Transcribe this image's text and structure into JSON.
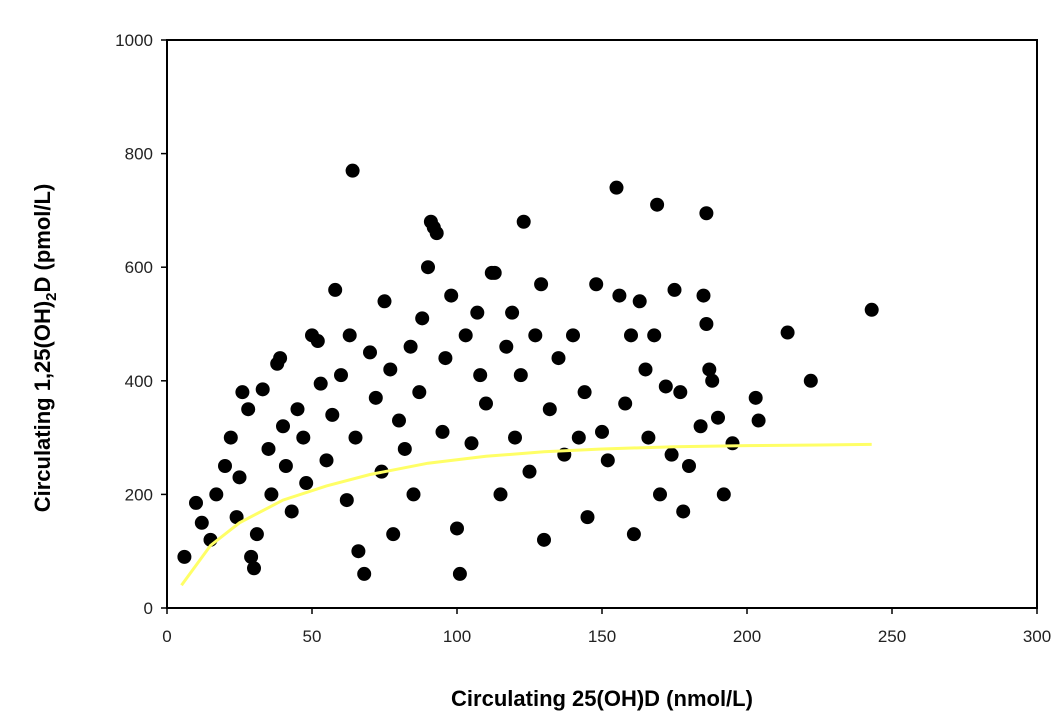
{
  "chart_data": {
    "type": "scatter",
    "title": "",
    "xlabel": "Circulating 25(OH)D (nmol/L)",
    "ylabel": "Circulating 1,25(OH)2D (pmol/L)",
    "ylabel_parts": {
      "prefix": "Circulating 1,25(OH)",
      "subscript": "2",
      "suffix": "D (pmol/L)"
    },
    "xlim": [
      0,
      300
    ],
    "ylim": [
      0,
      1000
    ],
    "xticks": [
      0,
      50,
      100,
      150,
      200,
      250,
      300
    ],
    "yticks": [
      0,
      200,
      400,
      600,
      800,
      1000
    ],
    "xtick_labels": [
      "0",
      "50",
      "100",
      "150",
      "200",
      "250",
      "300"
    ],
    "ytick_labels": [
      "0",
      "200",
      "400",
      "600",
      "800",
      "1000"
    ],
    "grid": false,
    "legend": "none",
    "point_color": "#000000",
    "fit_line_color": "#ffff66",
    "series": [
      {
        "values": [
          [
            6,
            90
          ],
          [
            10,
            185
          ],
          [
            12,
            150
          ],
          [
            15,
            120
          ],
          [
            17,
            200
          ],
          [
            20,
            250
          ],
          [
            22,
            300
          ],
          [
            24,
            160
          ],
          [
            25,
            230
          ],
          [
            26,
            380
          ],
          [
            28,
            350
          ],
          [
            29,
            90
          ],
          [
            30,
            70
          ],
          [
            31,
            130
          ],
          [
            33,
            385
          ],
          [
            35,
            280
          ],
          [
            36,
            200
          ],
          [
            38,
            430
          ],
          [
            39,
            440
          ],
          [
            40,
            320
          ],
          [
            41,
            250
          ],
          [
            43,
            170
          ],
          [
            45,
            350
          ],
          [
            47,
            300
          ],
          [
            48,
            220
          ],
          [
            50,
            480
          ],
          [
            52,
            470
          ],
          [
            53,
            395
          ],
          [
            55,
            260
          ],
          [
            57,
            340
          ],
          [
            58,
            560
          ],
          [
            60,
            410
          ],
          [
            62,
            190
          ],
          [
            63,
            480
          ],
          [
            64,
            770
          ],
          [
            65,
            300
          ],
          [
            66,
            100
          ],
          [
            68,
            60
          ],
          [
            70,
            450
          ],
          [
            72,
            370
          ],
          [
            74,
            240
          ],
          [
            75,
            540
          ],
          [
            77,
            420
          ],
          [
            78,
            130
          ],
          [
            80,
            330
          ],
          [
            82,
            280
          ],
          [
            84,
            460
          ],
          [
            85,
            200
          ],
          [
            87,
            380
          ],
          [
            88,
            510
          ],
          [
            90,
            600
          ],
          [
            91,
            680
          ],
          [
            92,
            670
          ],
          [
            93,
            660
          ],
          [
            95,
            310
          ],
          [
            96,
            440
          ],
          [
            98,
            550
          ],
          [
            100,
            140
          ],
          [
            101,
            60
          ],
          [
            103,
            480
          ],
          [
            105,
            290
          ],
          [
            107,
            520
          ],
          [
            108,
            410
          ],
          [
            110,
            360
          ],
          [
            112,
            590
          ],
          [
            113,
            590
          ],
          [
            115,
            200
          ],
          [
            117,
            460
          ],
          [
            119,
            520
          ],
          [
            120,
            300
          ],
          [
            122,
            410
          ],
          [
            123,
            680
          ],
          [
            125,
            240
          ],
          [
            127,
            480
          ],
          [
            129,
            570
          ],
          [
            130,
            120
          ],
          [
            132,
            350
          ],
          [
            135,
            440
          ],
          [
            137,
            270
          ],
          [
            140,
            480
          ],
          [
            142,
            300
          ],
          [
            144,
            380
          ],
          [
            145,
            160
          ],
          [
            148,
            570
          ],
          [
            150,
            310
          ],
          [
            152,
            260
          ],
          [
            155,
            740
          ],
          [
            156,
            550
          ],
          [
            158,
            360
          ],
          [
            160,
            480
          ],
          [
            161,
            130
          ],
          [
            163,
            540
          ],
          [
            165,
            420
          ],
          [
            166,
            300
          ],
          [
            168,
            480
          ],
          [
            169,
            710
          ],
          [
            170,
            200
          ],
          [
            172,
            390
          ],
          [
            174,
            270
          ],
          [
            175,
            560
          ],
          [
            177,
            380
          ],
          [
            178,
            170
          ],
          [
            180,
            250
          ],
          [
            184,
            320
          ],
          [
            185,
            550
          ],
          [
            186,
            500
          ],
          [
            186,
            695
          ],
          [
            187,
            420
          ],
          [
            188,
            400
          ],
          [
            190,
            335
          ],
          [
            192,
            200
          ],
          [
            195,
            290
          ],
          [
            203,
            370
          ],
          [
            204,
            330
          ],
          [
            214,
            485
          ],
          [
            222,
            400
          ],
          [
            243,
            525
          ]
        ]
      },
      {
        "name": "",
        "fit": true,
        "values": [
          [
            5,
            40
          ],
          [
            15,
            110
          ],
          [
            25,
            150
          ],
          [
            40,
            190
          ],
          [
            55,
            215
          ],
          [
            70,
            235
          ],
          [
            90,
            255
          ],
          [
            110,
            267
          ],
          [
            130,
            275
          ],
          [
            150,
            280
          ],
          [
            175,
            284
          ],
          [
            200,
            286
          ],
          [
            225,
            287
          ],
          [
            243,
            288
          ]
        ]
      }
    ]
  }
}
